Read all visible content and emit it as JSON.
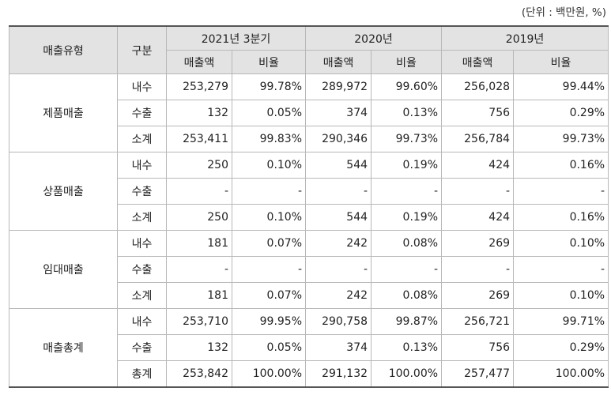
{
  "unit_note": "(단위 : 백만원, %)",
  "header": {
    "type": "매출유형",
    "division": "구분",
    "periods": [
      "2021년 3분기",
      "2020년",
      "2019년"
    ],
    "amount": "매출액",
    "ratio": "비율"
  },
  "groups": [
    {
      "name": "제품매출",
      "rows": [
        {
          "label": "내수",
          "cells": [
            "253,279",
            "99.78%",
            "289,972",
            "99.60%",
            "256,028",
            "99.44%"
          ]
        },
        {
          "label": "수출",
          "cells": [
            "132",
            "0.05%",
            "374",
            "0.13%",
            "756",
            "0.29%"
          ]
        },
        {
          "label": "소계",
          "cells": [
            "253,411",
            "99.83%",
            "290,346",
            "99.73%",
            "256,784",
            "99.73%"
          ]
        }
      ]
    },
    {
      "name": "상품매출",
      "rows": [
        {
          "label": "내수",
          "cells": [
            "250",
            "0.10%",
            "544",
            "0.19%",
            "424",
            "0.16%"
          ]
        },
        {
          "label": "수출",
          "cells": [
            "-",
            "-",
            "-",
            "-",
            "-",
            "-"
          ]
        },
        {
          "label": "소계",
          "cells": [
            "250",
            "0.10%",
            "544",
            "0.19%",
            "424",
            "0.16%"
          ]
        }
      ]
    },
    {
      "name": "임대매출",
      "rows": [
        {
          "label": "내수",
          "cells": [
            "181",
            "0.07%",
            "242",
            "0.08%",
            "269",
            "0.10%"
          ]
        },
        {
          "label": "수출",
          "cells": [
            "-",
            "-",
            "-",
            "-",
            "-",
            "-"
          ]
        },
        {
          "label": "소계",
          "cells": [
            "181",
            "0.07%",
            "242",
            "0.08%",
            "269",
            "0.10%"
          ]
        }
      ]
    },
    {
      "name": "매출총계",
      "rows": [
        {
          "label": "내수",
          "cells": [
            "253,710",
            "99.95%",
            "290,758",
            "99.87%",
            "256,721",
            "99.71%"
          ]
        },
        {
          "label": "수출",
          "cells": [
            "132",
            "0.05%",
            "374",
            "0.13%",
            "756",
            "0.29%"
          ]
        },
        {
          "label": "총계",
          "cells": [
            "253,842",
            "100.00%",
            "291,132",
            "100.00%",
            "257,477",
            "100.00%"
          ]
        }
      ]
    }
  ]
}
